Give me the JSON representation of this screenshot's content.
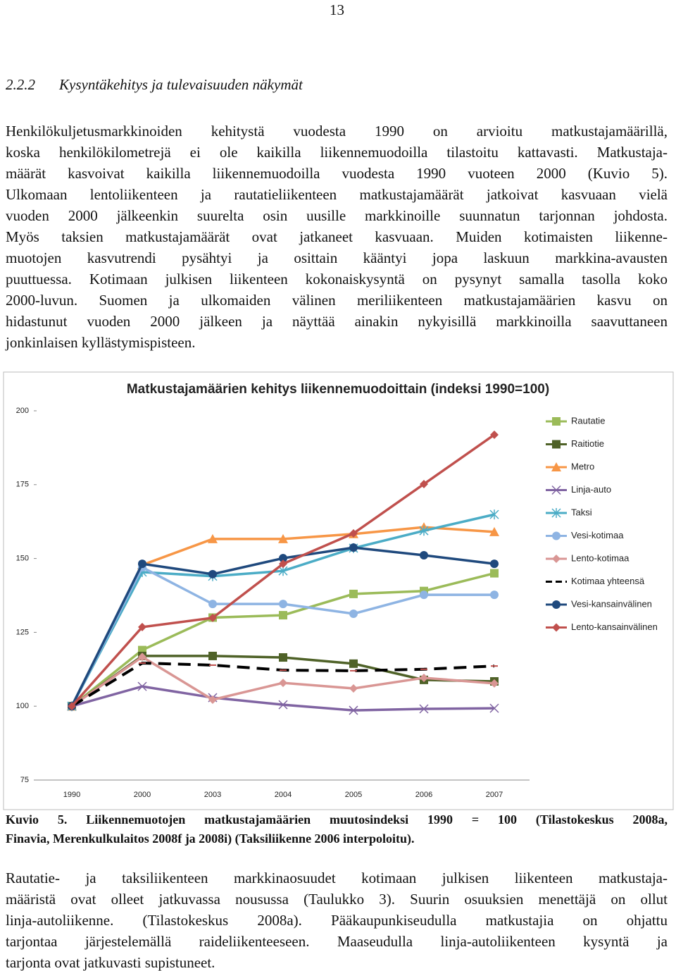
{
  "page_number": "13",
  "heading": {
    "number": "2.2.2",
    "title": "Kysyntäkehitys ja tulevaisuuden näkymät"
  },
  "paragraph1": [
    "Henkilökuljetusmarkkinoiden kehitystä vuodesta 1990 on arvioitu matkustajamäärillä,",
    "koska henkilökilometrejä ei ole kaikilla liikennemuodoilla tilastoitu kattavasti. Matkustaja-",
    "määrät kasvoivat kaikilla liikennemuodoilla vuodesta 1990 vuoteen 2000 (Kuvio 5).",
    "Ulkomaan lentoliikenteen ja rautatieliikenteen matkustajamäärät jatkoivat kasvuaan vielä",
    "vuoden 2000 jälkeenkin suurelta osin uusille markkinoille suunnatun tarjonnan johdosta.",
    "Myös taksien matkustajamäärät ovat jatkaneet kasvuaan. Muiden kotimaisten liikenne-",
    "muotojen kasvutrendi pysähtyi ja osittain kääntyi jopa laskuun markkina-avausten",
    "puuttuessa. Kotimaan julkisen liikenteen kokonaiskysyntä on pysynyt samalla tasolla koko",
    "2000-luvun. Suomen ja ulkomaiden välinen meriliikenteen matkustajamäärien kasvu on",
    "hidastunut vuoden 2000 jälkeen ja näyttää ainakin nykyisillä markkinoilla saavuttaneen",
    "jonkinlaisen kyllästymispisteen."
  ],
  "chart_data": {
    "type": "line",
    "title": "Matkustajamäärien kehitys liikennemuodoittain (indeksi 1990=100)",
    "categories": [
      "1990",
      "2000",
      "2003",
      "2004",
      "2005",
      "2006",
      "2007"
    ],
    "ylim": [
      75,
      200
    ],
    "yticks": [
      75,
      100,
      125,
      150,
      175,
      200
    ],
    "grid": false,
    "legend": "right",
    "series": [
      {
        "name": "Rautatie",
        "color": "#9bbb59",
        "marker": "square",
        "values": [
          100,
          119,
          130,
          130.8,
          138,
          139,
          145
        ]
      },
      {
        "name": "Raitiotie",
        "color": "#4f6228",
        "marker": "square",
        "values": [
          100,
          117,
          117,
          116.5,
          114.4,
          108.9,
          108.4
        ]
      },
      {
        "name": "Metro",
        "color": "#f79646",
        "marker": "triangle",
        "values": [
          100,
          147.8,
          156.6,
          156.6,
          158.3,
          160.6,
          159
        ]
      },
      {
        "name": "Linja-auto",
        "color": "#8064a2",
        "marker": "x",
        "values": [
          100,
          106.7,
          102.9,
          100.5,
          98.6,
          99.1,
          99.3
        ]
      },
      {
        "name": "Taksi",
        "color": "#4bacc6",
        "marker": "star",
        "values": [
          100,
          145.4,
          144,
          145.8,
          153.5,
          159.4,
          164.9
        ]
      },
      {
        "name": "Vesi-kotimaa",
        "color": "#8eb4e3",
        "marker": "circle",
        "values": [
          100,
          147,
          134.6,
          134.6,
          131.3,
          137.7,
          137.7
        ]
      },
      {
        "name": "Lento-kotimaa",
        "color": "#d99694",
        "marker": "diamond",
        "values": [
          100,
          116.7,
          102.2,
          107.9,
          106,
          109.6,
          107.7
        ]
      },
      {
        "name": "Kotimaa yhteensä",
        "color": "#000000",
        "marker": "dash",
        "dashed": true,
        "values": [
          100,
          114.6,
          113.9,
          112.2,
          112,
          112.5,
          113.6
        ]
      },
      {
        "name": "Vesi-kansainvälinen",
        "color": "#1f497d",
        "marker": "circle",
        "values": [
          100,
          148.2,
          144.7,
          150.1,
          153.7,
          151.1,
          148.2
        ]
      },
      {
        "name": "Lento-kansainvälinen",
        "color": "#c0504d",
        "marker": "diamond",
        "values": [
          100,
          126.8,
          129.9,
          148.2,
          158.5,
          175.2,
          191.9
        ]
      }
    ]
  },
  "caption": [
    "Kuvio  5. Liikennemuotojen matkustajamäärien muutosindeksi 1990 = 100 (Tilastokeskus 2008a,",
    "Finavia, Merenkulkulaitos 2008f ja 2008i) (Taksiliikenne 2006 interpoloitu)."
  ],
  "paragraph2": [
    "Rautatie- ja taksiliikenteen markkinaosuudet kotimaan julkisen liikenteen matkustaja-",
    "määristä ovat olleet jatkuvassa nousussa (Taulukko 3). Suurin osuuksien menettäjä on ollut",
    "linja-autoliikenne. (Tilastokeskus 2008a). Pääkaupunkiseudulla matkustajia on ohjattu",
    "tarjontaa järjestelemällä raideliikenteeseen. Maaseudulla linja-autoliikenteen kysyntä ja",
    "tarjonta ovat jatkuvasti supistuneet."
  ]
}
